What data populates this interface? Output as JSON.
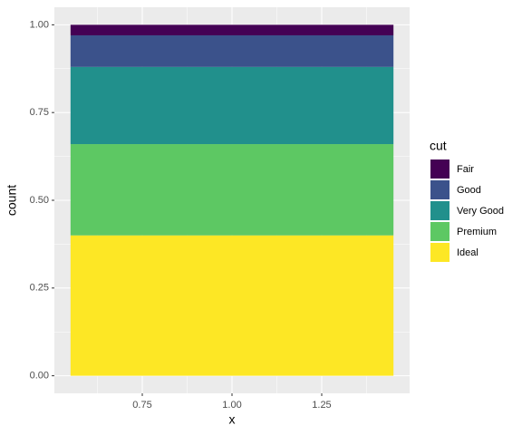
{
  "chart_data": {
    "type": "stacked_bar",
    "x_label": "x",
    "y_label": "count",
    "x": [
      1
    ],
    "series": [
      {
        "name": "Fair",
        "color": "#440154",
        "values": [
          0.03
        ]
      },
      {
        "name": "Good",
        "color": "#3B528B",
        "values": [
          0.09
        ]
      },
      {
        "name": "Very Good",
        "color": "#21908C",
        "values": [
          0.22
        ]
      },
      {
        "name": "Premium",
        "color": "#5DC863",
        "values": [
          0.26
        ]
      },
      {
        "name": "Ideal",
        "color": "#FDE725",
        "values": [
          0.4
        ]
      }
    ],
    "legend_title": "cut",
    "xlim": [
      0.505,
      1.495
    ],
    "xticks": [
      0.75,
      {
        "value": 1,
        "label": "1.00"
      },
      1.25
    ],
    "ylim": [
      -0.05,
      1.05
    ],
    "yticks": [
      {
        "value": 0,
        "label": "0.00"
      },
      0.25,
      {
        "value": 0.5,
        "label": "0.50"
      },
      0.75,
      {
        "value": 1,
        "label": "1.00"
      }
    ],
    "grid": true,
    "legend_position": "right"
  }
}
